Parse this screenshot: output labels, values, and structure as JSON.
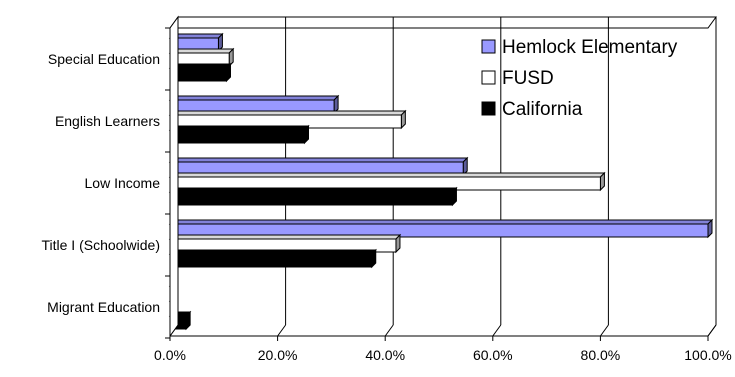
{
  "chart_data": {
    "type": "bar",
    "orientation": "horizontal",
    "style": "3d-clustered",
    "categories": [
      "Special Education",
      "English Learners",
      "Low Income",
      "Title I (Schoolwide)",
      "Migrant Education"
    ],
    "series": [
      {
        "name": "Hemlock Elementary",
        "values": [
          9.0,
          30.5,
          54.5,
          100.0,
          0.5
        ],
        "color": "#9999ff"
      },
      {
        "name": "FUSD",
        "values": [
          11.0,
          43.0,
          80.0,
          42.0,
          0.5
        ],
        "color": "#ffffff"
      },
      {
        "name": "California",
        "values": [
          10.5,
          25.0,
          52.5,
          37.5,
          3.0
        ],
        "color": "#000000"
      }
    ],
    "x_ticks": [
      "0.0%",
      "20.0%",
      "40.0%",
      "60.0%",
      "80.0%",
      "100.0%"
    ],
    "xlim": [
      0,
      100
    ],
    "x_unit": "%",
    "title": "",
    "xlabel": "",
    "ylabel": "",
    "grid": "vertical",
    "legend_position": "top-right"
  }
}
